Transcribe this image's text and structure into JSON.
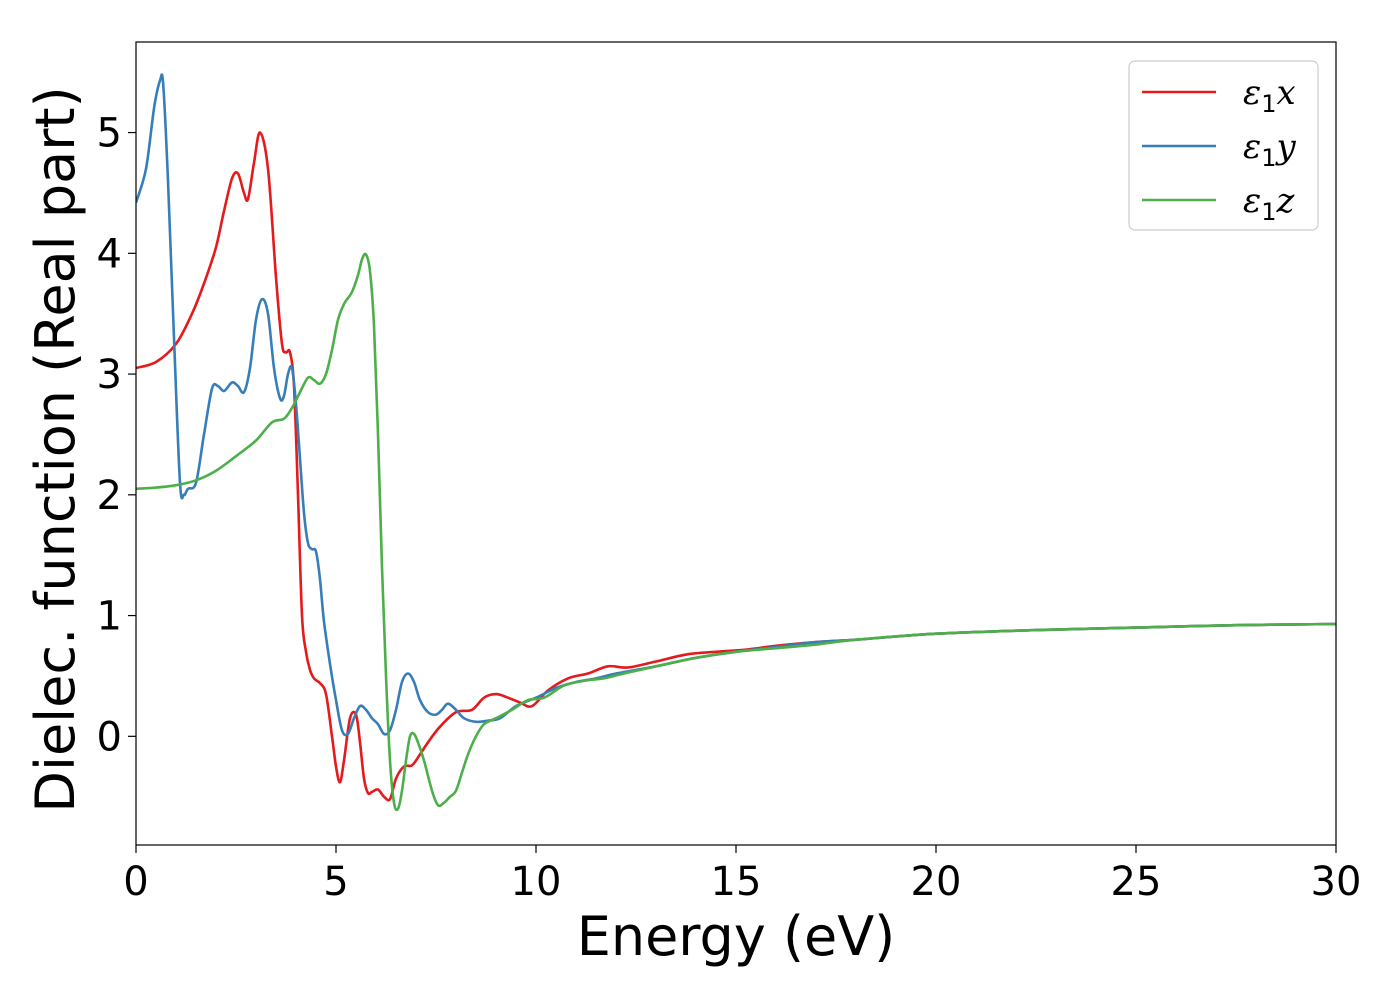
{
  "chart_data": {
    "type": "line",
    "title": "",
    "xlabel": "Energy (eV)",
    "ylabel": "Dielec. function (Real part)",
    "xlim": [
      0,
      30
    ],
    "ylim": [
      -0.9,
      5.75
    ],
    "xticks": [
      0,
      5,
      10,
      15,
      20,
      25,
      30
    ],
    "xtick_labels": [
      "0",
      "5",
      "10",
      "15",
      "20",
      "25",
      "30"
    ],
    "yticks": [
      0,
      1,
      2,
      3,
      4,
      5
    ],
    "ytick_labels": [
      "0",
      "1",
      "2",
      "3",
      "4",
      "5"
    ],
    "grid": false,
    "legend_position": "top-right",
    "series": [
      {
        "name": "ε1x",
        "legend": {
          "base": "ε",
          "sub": "1",
          "var": "x"
        },
        "color": "#e41a1c",
        "x": [
          0,
          0.5,
          1.0,
          1.4,
          1.7,
          2.0,
          2.2,
          2.4,
          2.55,
          2.7,
          2.8,
          2.95,
          3.1,
          3.3,
          3.5,
          3.65,
          3.75,
          3.85,
          3.95,
          4.05,
          4.15,
          4.25,
          4.35,
          4.45,
          4.6,
          4.75,
          4.9,
          5.0,
          5.1,
          5.2,
          5.35,
          5.5,
          5.6,
          5.7,
          5.8,
          5.9,
          6.05,
          6.2,
          6.35,
          6.5,
          6.7,
          6.9,
          7.1,
          7.3,
          7.6,
          8.0,
          8.4,
          8.7,
          9.0,
          9.3,
          9.6,
          9.9,
          10.3,
          10.8,
          11.3,
          11.8,
          12.3,
          13.0,
          13.8,
          14.5,
          15.3,
          16.0,
          17.0,
          18.0,
          20.0,
          22.5,
          25.0,
          27.5,
          30.0
        ],
        "y": [
          3.05,
          3.1,
          3.25,
          3.5,
          3.75,
          4.05,
          4.35,
          4.62,
          4.66,
          4.5,
          4.45,
          4.75,
          5.0,
          4.7,
          3.8,
          3.25,
          3.18,
          3.18,
          2.9,
          2.0,
          1.0,
          0.7,
          0.55,
          0.48,
          0.44,
          0.35,
          0.0,
          -0.25,
          -0.38,
          -0.2,
          0.15,
          0.18,
          -0.05,
          -0.35,
          -0.47,
          -0.46,
          -0.44,
          -0.5,
          -0.52,
          -0.35,
          -0.25,
          -0.24,
          -0.15,
          -0.05,
          0.08,
          0.2,
          0.22,
          0.32,
          0.35,
          0.32,
          0.28,
          0.25,
          0.38,
          0.48,
          0.52,
          0.58,
          0.57,
          0.62,
          0.68,
          0.7,
          0.72,
          0.75,
          0.78,
          0.8,
          0.85,
          0.88,
          0.9,
          0.92,
          0.93
        ]
      },
      {
        "name": "ε1y",
        "legend": {
          "base": "ε",
          "sub": "1",
          "var": "y"
        },
        "color": "#377eb8",
        "x": [
          0,
          0.25,
          0.45,
          0.6,
          0.68,
          0.8,
          0.95,
          1.1,
          1.2,
          1.3,
          1.5,
          1.7,
          1.9,
          2.05,
          2.2,
          2.4,
          2.55,
          2.7,
          2.85,
          3.0,
          3.15,
          3.3,
          3.45,
          3.6,
          3.7,
          3.8,
          3.9,
          4.0,
          4.1,
          4.2,
          4.3,
          4.4,
          4.5,
          4.6,
          4.7,
          4.85,
          5.0,
          5.15,
          5.3,
          5.45,
          5.6,
          5.75,
          5.9,
          6.05,
          6.2,
          6.35,
          6.5,
          6.65,
          6.8,
          6.95,
          7.1,
          7.3,
          7.5,
          7.65,
          7.8,
          8.0,
          8.2,
          8.5,
          8.8,
          9.1,
          9.5,
          10.0,
          10.5,
          11.0,
          11.5,
          12.0,
          13.0,
          14.0,
          15.0,
          16.0,
          17.0,
          18.0,
          20.0,
          22.5,
          25.0,
          27.5,
          30.0
        ],
        "y": [
          4.42,
          4.7,
          5.2,
          5.43,
          5.4,
          4.6,
          3.3,
          2.1,
          2.0,
          2.05,
          2.1,
          2.5,
          2.88,
          2.9,
          2.86,
          2.93,
          2.9,
          2.85,
          3.05,
          3.45,
          3.62,
          3.5,
          3.05,
          2.8,
          2.82,
          3.0,
          3.05,
          2.75,
          2.3,
          1.85,
          1.6,
          1.55,
          1.53,
          1.3,
          0.95,
          0.6,
          0.3,
          0.05,
          0.02,
          0.15,
          0.25,
          0.22,
          0.15,
          0.1,
          0.02,
          0.05,
          0.22,
          0.45,
          0.52,
          0.45,
          0.3,
          0.2,
          0.18,
          0.22,
          0.27,
          0.22,
          0.15,
          0.12,
          0.13,
          0.15,
          0.25,
          0.32,
          0.4,
          0.45,
          0.48,
          0.52,
          0.58,
          0.65,
          0.7,
          0.74,
          0.78,
          0.8,
          0.85,
          0.88,
          0.9,
          0.92,
          0.93
        ]
      },
      {
        "name": "ε1z",
        "legend": {
          "base": "ε",
          "sub": "1",
          "var": "z"
        },
        "color": "#4daf4a",
        "x": [
          0,
          0.5,
          1.0,
          1.5,
          2.0,
          2.5,
          3.0,
          3.4,
          3.7,
          3.9,
          4.1,
          4.3,
          4.45,
          4.6,
          4.75,
          4.9,
          5.05,
          5.2,
          5.4,
          5.55,
          5.65,
          5.75,
          5.85,
          5.95,
          6.05,
          6.15,
          6.25,
          6.35,
          6.45,
          6.55,
          6.65,
          6.75,
          6.85,
          6.95,
          7.05,
          7.2,
          7.4,
          7.55,
          7.7,
          7.85,
          8.0,
          8.15,
          8.3,
          8.5,
          8.7,
          9.0,
          9.4,
          9.8,
          10.2,
          10.7,
          11.2,
          11.7,
          12.2,
          13.0,
          14.0,
          15.0,
          16.0,
          17.0,
          18.0,
          20.0,
          22.5,
          25.0,
          27.5,
          30.0
        ],
        "y": [
          2.05,
          2.06,
          2.08,
          2.12,
          2.2,
          2.32,
          2.45,
          2.6,
          2.63,
          2.72,
          2.85,
          2.97,
          2.95,
          2.92,
          3.0,
          3.2,
          3.45,
          3.58,
          3.68,
          3.82,
          3.95,
          3.99,
          3.85,
          3.4,
          2.5,
          1.4,
          0.5,
          -0.2,
          -0.55,
          -0.6,
          -0.45,
          -0.2,
          0.0,
          0.02,
          -0.05,
          -0.2,
          -0.45,
          -0.57,
          -0.55,
          -0.5,
          -0.45,
          -0.3,
          -0.15,
          0.0,
          0.1,
          0.15,
          0.22,
          0.3,
          0.32,
          0.42,
          0.46,
          0.48,
          0.52,
          0.58,
          0.65,
          0.7,
          0.73,
          0.76,
          0.8,
          0.85,
          0.88,
          0.9,
          0.92,
          0.93
        ]
      }
    ]
  }
}
